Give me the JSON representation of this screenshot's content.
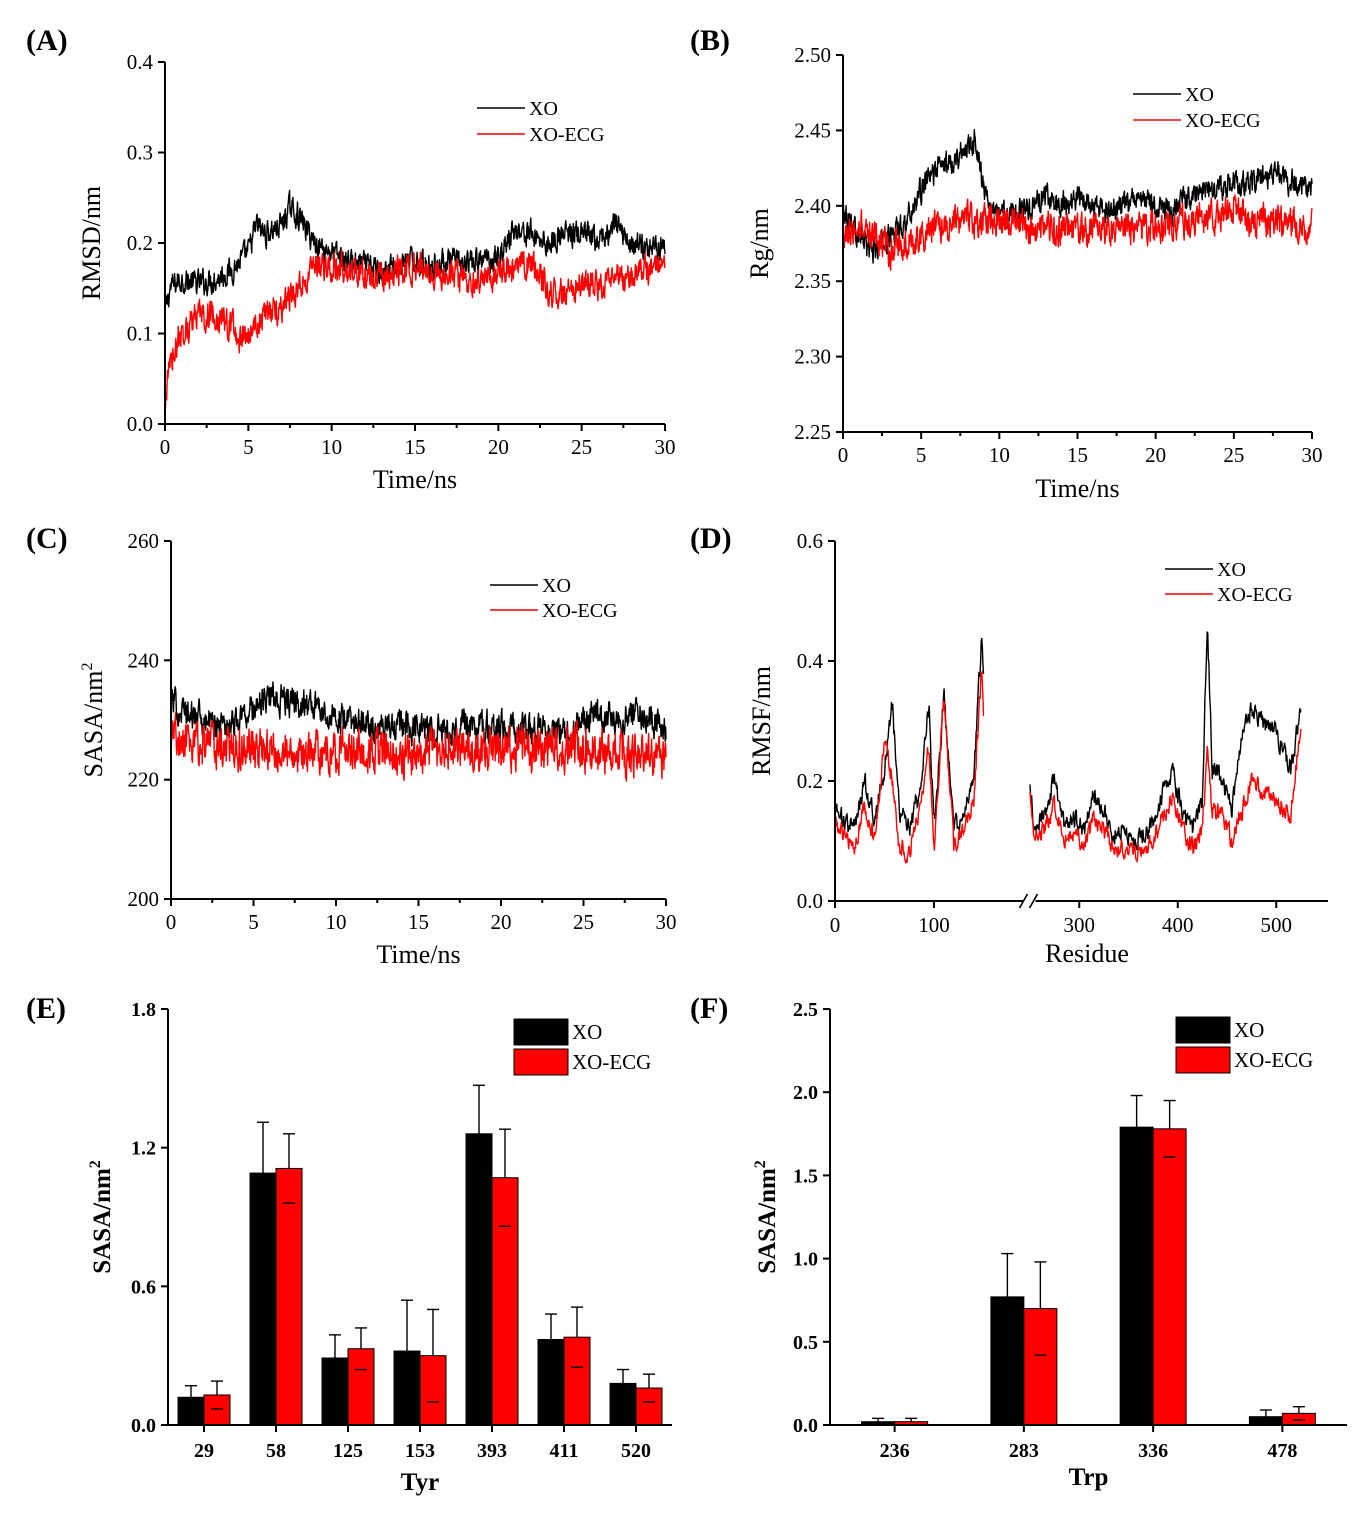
{
  "colors": {
    "XO": "#000000",
    "XO-ECG": "#ff0000",
    "axis": "#000000"
  },
  "chart_data": [
    {
      "panel": "(A)",
      "type": "line",
      "xlabel": "Time/ns",
      "ylabel": "RMSD/nm",
      "xlim": [
        0,
        30
      ],
      "ylim": [
        0.0,
        0.4
      ],
      "xticks": [
        "0",
        "5",
        "10",
        "15",
        "20",
        "25",
        "30"
      ],
      "yticks": [
        "0.0",
        "0.1",
        "0.2",
        "0.3",
        "0.4"
      ],
      "legend": "top-right",
      "series": [
        {
          "name": "XO",
          "color": "#000000",
          "noise": 0.012,
          "x": [
            0,
            0.3,
            1,
            2,
            3,
            4,
            5,
            5.5,
            6,
            7,
            7.5,
            8,
            9,
            10,
            11,
            12,
            13,
            14,
            15,
            16,
            17,
            18,
            19,
            20,
            21,
            22,
            23,
            24,
            25,
            26,
            27,
            28,
            29,
            30
          ],
          "y": [
            0.12,
            0.15,
            0.16,
            0.155,
            0.16,
            0.17,
            0.19,
            0.22,
            0.21,
            0.22,
            0.24,
            0.23,
            0.2,
            0.19,
            0.18,
            0.175,
            0.17,
            0.175,
            0.18,
            0.175,
            0.18,
            0.175,
            0.18,
            0.185,
            0.215,
            0.21,
            0.2,
            0.21,
            0.21,
            0.2,
            0.22,
            0.2,
            0.195,
            0.2
          ]
        },
        {
          "name": "XO-ECG",
          "color": "#ff0000",
          "noise": 0.014,
          "x": [
            0,
            0.3,
            1,
            2,
            3,
            4,
            4.5,
            5,
            6,
            7,
            8,
            9,
            10,
            11,
            12,
            13,
            14,
            15,
            16,
            17,
            18,
            19,
            20,
            21,
            22,
            23,
            24,
            25,
            26,
            27,
            28,
            29,
            30
          ],
          "y": [
            0.02,
            0.07,
            0.1,
            0.12,
            0.12,
            0.11,
            0.09,
            0.1,
            0.12,
            0.13,
            0.15,
            0.17,
            0.175,
            0.17,
            0.165,
            0.16,
            0.17,
            0.175,
            0.17,
            0.165,
            0.16,
            0.16,
            0.165,
            0.17,
            0.18,
            0.15,
            0.14,
            0.16,
            0.15,
            0.16,
            0.165,
            0.17,
            0.18
          ]
        }
      ]
    },
    {
      "panel": "(B)",
      "type": "line",
      "xlabel": "Time/ns",
      "ylabel": "Rg/nm",
      "xlim": [
        0,
        30
      ],
      "ylim": [
        2.25,
        2.5
      ],
      "xticks": [
        "0",
        "5",
        "10",
        "15",
        "20",
        "25",
        "30"
      ],
      "yticks": [
        "2.25",
        "2.30",
        "2.35",
        "2.40",
        "2.45",
        "2.50"
      ],
      "legend": "top-right",
      "series": [
        {
          "name": "XO",
          "color": "#000000",
          "noise": 0.007,
          "x": [
            0,
            1,
            2,
            3,
            4,
            5,
            6,
            7,
            8,
            8.5,
            9,
            10,
            11,
            12,
            13,
            14,
            15,
            16,
            17,
            18,
            19,
            20,
            21,
            22,
            23,
            24,
            25,
            26,
            27,
            28,
            29,
            30
          ],
          "y": [
            2.4,
            2.38,
            2.37,
            2.38,
            2.39,
            2.41,
            2.425,
            2.43,
            2.44,
            2.445,
            2.41,
            2.395,
            2.395,
            2.4,
            2.405,
            2.4,
            2.405,
            2.4,
            2.395,
            2.4,
            2.405,
            2.4,
            2.395,
            2.405,
            2.41,
            2.41,
            2.415,
            2.415,
            2.42,
            2.42,
            2.415,
            2.41
          ]
        },
        {
          "name": "XO-ECG",
          "color": "#ff0000",
          "noise": 0.009,
          "x": [
            0,
            1,
            2,
            3,
            4,
            5,
            6,
            8,
            10,
            12,
            14,
            16,
            18,
            20,
            22,
            24,
            25,
            26,
            28,
            30
          ],
          "y": [
            2.38,
            2.39,
            2.38,
            2.37,
            2.375,
            2.38,
            2.385,
            2.39,
            2.39,
            2.385,
            2.385,
            2.385,
            2.385,
            2.385,
            2.39,
            2.395,
            2.4,
            2.39,
            2.39,
            2.385
          ]
        }
      ]
    },
    {
      "panel": "(C)",
      "type": "line",
      "xlabel": "Time/ns",
      "ylabel": "SASA/nm",
      "ylabel_superscript": "2",
      "xlim": [
        0,
        30
      ],
      "ylim": [
        200,
        260
      ],
      "xticks": [
        "0",
        "5",
        "10",
        "15",
        "20",
        "25",
        "30"
      ],
      "yticks": [
        "200",
        "220",
        "240",
        "260"
      ],
      "legend": "top-right",
      "series": [
        {
          "name": "XO",
          "color": "#000000",
          "noise": 2.2,
          "x": [
            0,
            1,
            2,
            3,
            4,
            5,
            6,
            7,
            8,
            9,
            10,
            12,
            14,
            16,
            18,
            20,
            22,
            24,
            25,
            26,
            27,
            28,
            29,
            30
          ],
          "y": [
            233,
            231,
            230,
            229,
            230,
            232,
            234,
            233,
            233,
            232,
            230,
            229,
            229,
            228,
            229,
            229,
            228,
            228,
            230,
            231,
            230,
            231,
            230,
            229
          ]
        },
        {
          "name": "XO-ECG",
          "color": "#ff0000",
          "noise": 3,
          "x": [
            0,
            2,
            4,
            6,
            8,
            10,
            12,
            14,
            16,
            18,
            20,
            22,
            24,
            26,
            28,
            30
          ],
          "y": [
            227,
            226,
            225,
            225,
            224,
            225,
            225,
            224,
            225,
            225,
            225,
            225,
            225,
            225,
            224,
            223
          ]
        }
      ]
    },
    {
      "panel": "(D)",
      "type": "line",
      "xlabel": "Residue",
      "ylabel": "RMSF/nm",
      "ylim": [
        0.0,
        0.6
      ],
      "xticks": [
        "0",
        "100",
        "300",
        "400",
        "500"
      ],
      "yticks": [
        "0.0",
        "0.2",
        "0.4",
        "0.6"
      ],
      "x_axis_break": true,
      "legend": "top-right",
      "series": [
        {
          "name": "XO",
          "color": "#000000",
          "noise": 0.015,
          "x": [
            0,
            10,
            20,
            30,
            40,
            50,
            58,
            65,
            75,
            85,
            95,
            100,
            110,
            120,
            130,
            140,
            148,
            155,
            165,
            175,
            185,
            195,
            205,
            215,
            225,
            235,
            245,
            255,
            265,
            275,
            285,
            295,
            305,
            315,
            325,
            335,
            345,
            355,
            365,
            375,
            385,
            395,
            405,
            415,
            425,
            430,
            435,
            445,
            455,
            465,
            475,
            485,
            495,
            505,
            515,
            525
          ],
          "y": [
            0.16,
            0.13,
            0.12,
            0.2,
            0.14,
            0.22,
            0.33,
            0.15,
            0.12,
            0.18,
            0.32,
            0.12,
            0.34,
            0.12,
            0.14,
            0.2,
            0.44,
            0.2,
            0.13,
            0.12,
            0.13,
            0.14,
            0.24,
            0.15,
            0.18,
            0.16,
            0.25,
            0.12,
            0.15,
            0.2,
            0.13,
            0.14,
            0.12,
            0.18,
            0.15,
            0.11,
            0.12,
            0.1,
            0.11,
            0.13,
            0.18,
            0.21,
            0.15,
            0.12,
            0.17,
            0.47,
            0.22,
            0.2,
            0.15,
            0.28,
            0.32,
            0.3,
            0.29,
            0.26,
            0.22,
            0.33
          ]
        },
        {
          "name": "XO-ECG",
          "color": "#ff0000",
          "noise": 0.014,
          "x": [
            0,
            10,
            20,
            30,
            40,
            50,
            58,
            65,
            75,
            85,
            95,
            100,
            110,
            120,
            130,
            140,
            148,
            155,
            165,
            175,
            185,
            195,
            205,
            215,
            225,
            235,
            245,
            255,
            265,
            275,
            285,
            295,
            305,
            315,
            325,
            335,
            345,
            355,
            365,
            375,
            385,
            395,
            405,
            415,
            425,
            430,
            435,
            445,
            455,
            465,
            475,
            485,
            495,
            505,
            515,
            525
          ],
          "y": [
            0.14,
            0.1,
            0.09,
            0.16,
            0.1,
            0.27,
            0.2,
            0.09,
            0.08,
            0.15,
            0.26,
            0.08,
            0.34,
            0.09,
            0.12,
            0.17,
            0.38,
            0.15,
            0.1,
            0.09,
            0.11,
            0.12,
            0.18,
            0.12,
            0.14,
            0.13,
            0.24,
            0.1,
            0.12,
            0.16,
            0.1,
            0.11,
            0.09,
            0.14,
            0.12,
            0.08,
            0.09,
            0.08,
            0.09,
            0.1,
            0.14,
            0.17,
            0.12,
            0.09,
            0.12,
            0.25,
            0.15,
            0.14,
            0.1,
            0.15,
            0.2,
            0.18,
            0.17,
            0.16,
            0.14,
            0.3
          ]
        }
      ]
    },
    {
      "panel": "(E)",
      "type": "bar",
      "xlabel": "Tyr",
      "ylabel": "SASA/nm",
      "ylabel_superscript": "2",
      "ylim": [
        0.0,
        1.8
      ],
      "yticks": [
        "0.0",
        "0.6",
        "1.2",
        "1.8"
      ],
      "categories": [
        "29",
        "58",
        "125",
        "153",
        "393",
        "411",
        "520"
      ],
      "legend": "top-right",
      "series": [
        {
          "name": "XO",
          "color": "#000000",
          "values": [
            0.12,
            1.09,
            0.29,
            0.32,
            1.26,
            0.37,
            0.18
          ],
          "errors": [
            0.05,
            0.22,
            0.1,
            0.22,
            0.21,
            0.11,
            0.06
          ]
        },
        {
          "name": "XO-ECG",
          "color": "#ff0000",
          "values": [
            0.13,
            1.11,
            0.33,
            0.3,
            1.07,
            0.38,
            0.16
          ],
          "errors": [
            0.06,
            0.15,
            0.09,
            0.2,
            0.21,
            0.13,
            0.06
          ]
        }
      ]
    },
    {
      "panel": "(F)",
      "type": "bar",
      "xlabel": "Trp",
      "ylabel": "SASA/nm",
      "ylabel_superscript": "2",
      "ylim": [
        0.0,
        2.5
      ],
      "yticks": [
        "0.0",
        "0.5",
        "1.0",
        "1.5",
        "2.0",
        "2.5"
      ],
      "categories": [
        "236",
        "283",
        "336",
        "478"
      ],
      "legend": "top-right",
      "series": [
        {
          "name": "XO",
          "color": "#000000",
          "values": [
            0.02,
            0.77,
            1.79,
            0.05
          ],
          "errors": [
            0.02,
            0.26,
            0.19,
            0.04
          ]
        },
        {
          "name": "XO-ECG",
          "color": "#ff0000",
          "values": [
            0.02,
            0.7,
            1.78,
            0.07
          ],
          "errors": [
            0.02,
            0.28,
            0.17,
            0.04
          ]
        }
      ]
    }
  ]
}
